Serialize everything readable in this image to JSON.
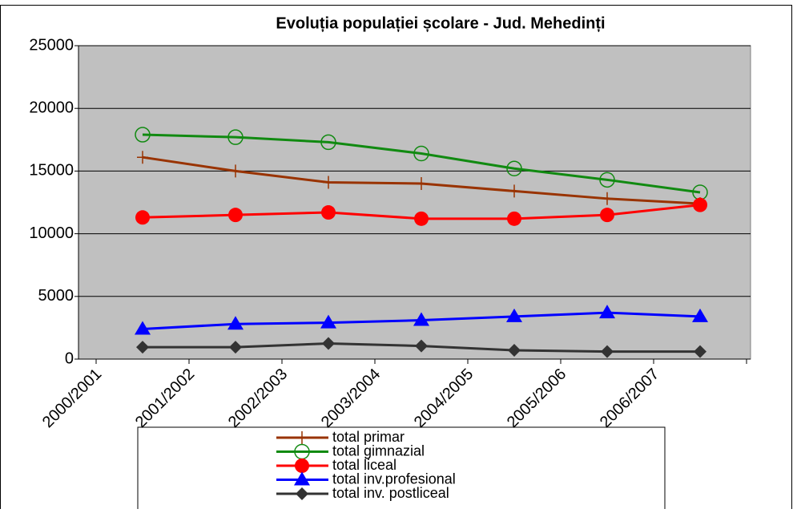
{
  "chart_data": {
    "type": "line",
    "title": "Evoluția populației școlare - Jud. Mehedinți",
    "categories": [
      "2000/2001",
      "2001/2002",
      "2002/2003",
      "2003/2004",
      "2004/2005",
      "2005/2006",
      "2006/2007"
    ],
    "ylim": [
      0,
      25000
    ],
    "yticks": [
      0,
      5000,
      10000,
      15000,
      20000,
      25000
    ],
    "grid": true,
    "legend": "bottom",
    "series": [
      {
        "name": "total primar",
        "color": "#993300",
        "marker": "plus",
        "values": [
          16100,
          15000,
          14100,
          14000,
          13400,
          12800,
          12400
        ]
      },
      {
        "name": "total gimnazial",
        "color": "#118a11",
        "marker": "open-circle",
        "values": [
          17900,
          17700,
          17300,
          16400,
          15200,
          14300,
          13300
        ]
      },
      {
        "name": "total liceal",
        "color": "#ff0000",
        "marker": "circle",
        "values": [
          11300,
          11500,
          11700,
          11200,
          11200,
          11500,
          12300
        ]
      },
      {
        "name": "total inv.profesional",
        "color": "#0000ff",
        "marker": "triangle",
        "values": [
          2400,
          2800,
          2900,
          3100,
          3400,
          3700,
          3400
        ]
      },
      {
        "name": "total inv. postliceal",
        "color": "#333333",
        "marker": "diamond",
        "values": [
          950,
          950,
          1250,
          1050,
          700,
          600,
          600
        ]
      }
    ]
  }
}
